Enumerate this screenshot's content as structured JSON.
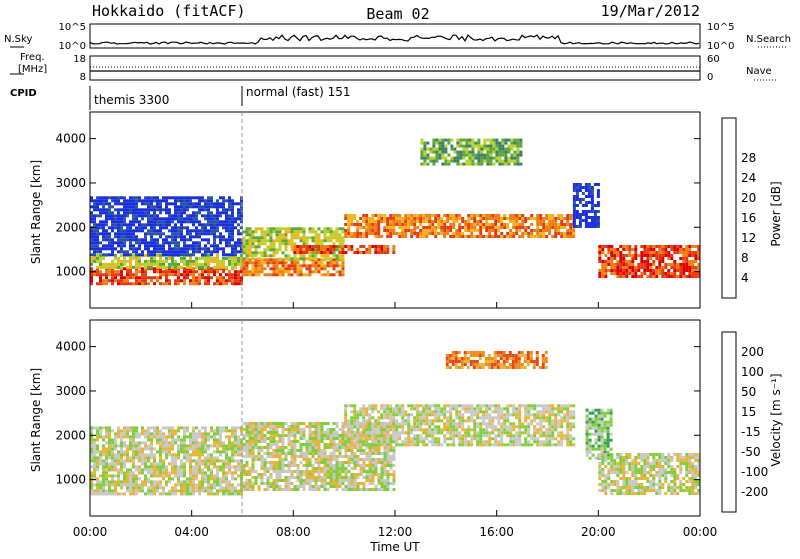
{
  "header": {
    "station": "Hokkaido (fitACF)",
    "beam": "Beam 02",
    "date": "19/Mar/2012"
  },
  "noise_panel": {
    "left_label": "N.Sky",
    "right_label": "N.Search",
    "left_ticks": [
      "10^5",
      "10^0"
    ],
    "right_ticks": [
      "10^5",
      "10^0"
    ]
  },
  "freq_panel": {
    "left_label_1": "Freq.",
    "left_label_2": "[MHz]",
    "left_ticks": [
      "18",
      "8"
    ],
    "right_label": "Nave",
    "right_ticks": [
      "60",
      "0"
    ]
  },
  "cpid": {
    "label": "CPID",
    "segments": [
      {
        "name": "themis 3300",
        "start_hour": 0,
        "end_hour": 6
      },
      {
        "name": "normal (fast) 151",
        "start_hour": 6,
        "end_hour": 24
      }
    ]
  },
  "x_axis": {
    "label": "Time UT",
    "range_hours": [
      0,
      24
    ],
    "tick_labels": [
      "00:00",
      "04:00",
      "08:00",
      "12:00",
      "16:00",
      "20:00",
      "00:00"
    ]
  },
  "power_panel": {
    "ylabel": "Slant Range [km]",
    "y_ticks": [
      "1000",
      "2000",
      "3000",
      "4000"
    ],
    "colorbar_label": "Power [dB]",
    "colorbar_ticks": [
      "4",
      "8",
      "12",
      "16",
      "20",
      "24",
      "28"
    ],
    "colors": [
      "#1a2fdc",
      "#2a53a8",
      "#3c7e66",
      "#58a93a",
      "#b9d12a",
      "#f2b21c",
      "#f07d12",
      "#e83a12",
      "#e00000"
    ]
  },
  "velocity_panel": {
    "ylabel": "Slant Range [km]",
    "y_ticks": [
      "1000",
      "2000",
      "3000",
      "4000"
    ],
    "colorbar_label": "Velocity [m s⁻¹]",
    "colorbar_ticks": [
      "200",
      "100",
      "50",
      "15",
      "-15",
      "-50",
      "-100",
      "-200"
    ],
    "colors": [
      "#2830c8",
      "#2a6eb0",
      "#2ea050",
      "#7ed03a",
      "#c8c8c8",
      "#e8b43a",
      "#f08a18",
      "#e84818",
      "#e00000"
    ]
  },
  "chart_data": {
    "type": "heatmap",
    "x_range_hours": [
      0,
      24
    ],
    "y_range_km": [
      180,
      4600
    ],
    "power_regions": [
      {
        "t0": 0.0,
        "t1": 6.0,
        "r0": 700,
        "r1": 1100,
        "level": 7
      },
      {
        "t0": 0.0,
        "t1": 6.0,
        "r0": 1100,
        "r1": 1400,
        "level": 4
      },
      {
        "t0": 0.0,
        "t1": 6.0,
        "r0": 1400,
        "r1": 2700,
        "level": 0
      },
      {
        "t0": 6.0,
        "t1": 10.0,
        "r0": 900,
        "r1": 1300,
        "level": 6
      },
      {
        "t0": 6.0,
        "t1": 10.0,
        "r0": 1300,
        "r1": 2000,
        "level": 4
      },
      {
        "t0": 8.0,
        "t1": 12.0,
        "r0": 1400,
        "r1": 1600,
        "level": 7
      },
      {
        "t0": 10.0,
        "t1": 19.0,
        "r0": 1800,
        "r1": 2300,
        "level": 6
      },
      {
        "t0": 13.0,
        "t1": 17.0,
        "r0": 3400,
        "r1": 4000,
        "level": 3
      },
      {
        "t0": 19.0,
        "t1": 20.0,
        "r0": 2000,
        "r1": 3000,
        "level": 0
      },
      {
        "t0": 20.0,
        "t1": 24.0,
        "r0": 900,
        "r1": 1600,
        "level": 7
      }
    ],
    "velocity_regions": [
      {
        "t0": 0.0,
        "t1": 6.0,
        "r0": 700,
        "r1": 2200,
        "level": 4
      },
      {
        "t0": 6.0,
        "t1": 12.0,
        "r0": 800,
        "r1": 2300,
        "level": 4
      },
      {
        "t0": 10.0,
        "t1": 19.0,
        "r0": 1800,
        "r1": 2700,
        "level": 4
      },
      {
        "t0": 14.0,
        "t1": 18.0,
        "r0": 3500,
        "r1": 3900,
        "level": 6
      },
      {
        "t0": 19.5,
        "t1": 20.5,
        "r0": 1500,
        "r1": 2600,
        "level": 3
      },
      {
        "t0": 20.0,
        "t1": 24.0,
        "r0": 700,
        "r1": 1600,
        "level": 4
      }
    ]
  }
}
